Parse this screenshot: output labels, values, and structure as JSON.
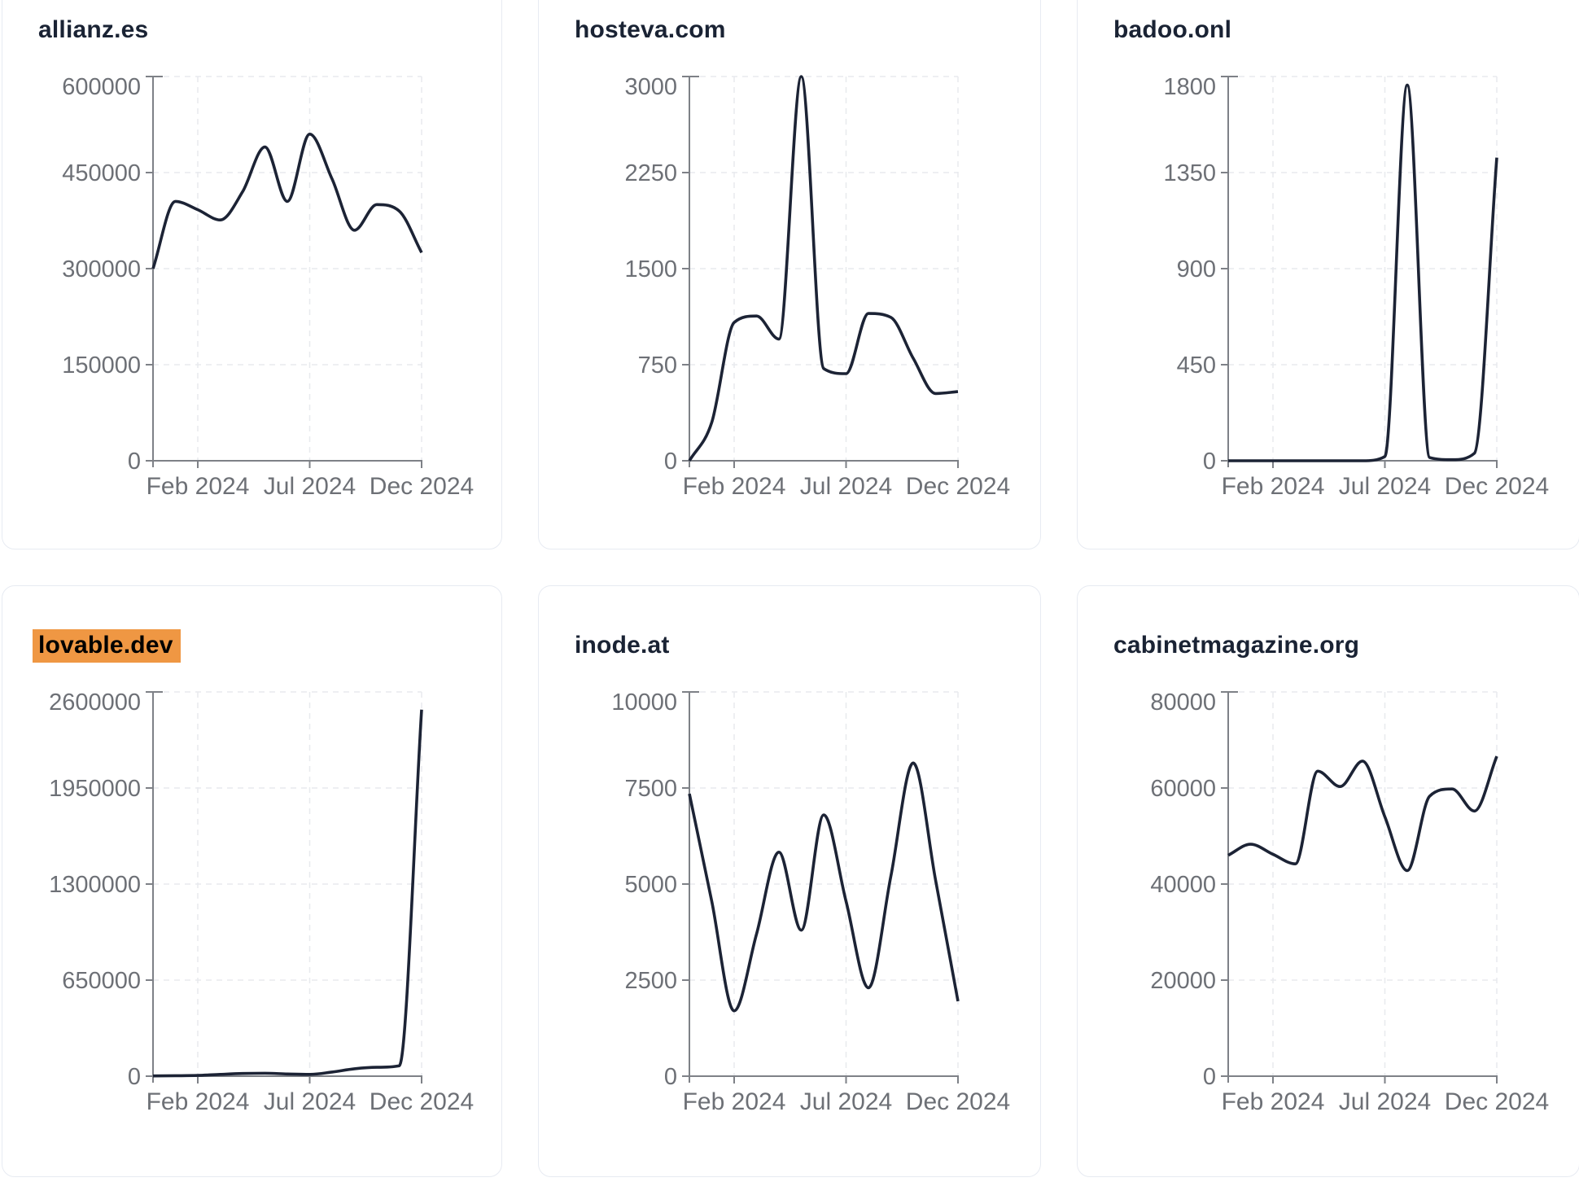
{
  "style": {
    "background": "#ffffff",
    "card_border": "#e7ebf2",
    "title_color": "#1a2334",
    "line_color": "#1c2335",
    "axis_color": "#7e8187",
    "tick_label_color": "#6d7076",
    "gridline_color": "#e8eaee",
    "highlight_color": "#ef9743",
    "highlight_text_color": "#000000"
  },
  "cards": [
    {
      "title": "allianz.es",
      "highlighted": false,
      "chart_data": {
        "type": "line",
        "x": [
          "2023-12",
          "2024-01",
          "2024-02",
          "2024-03",
          "2024-04",
          "2024-05",
          "2024-06",
          "2024-07",
          "2024-08",
          "2024-09",
          "2024-10",
          "2024-11",
          "2024-12"
        ],
        "values": [
          300000,
          405000,
          392000,
          376000,
          420000,
          490000,
          405000,
          510000,
          440000,
          360000,
          400000,
          390000,
          325000
        ],
        "y_ticks": [
          0,
          150000,
          300000,
          450000,
          600000
        ],
        "ylim": [
          0,
          600000
        ],
        "x_tick_labels": [
          "Feb 2024",
          "Jul 2024",
          "Dec 2024"
        ],
        "x_tick_indices": [
          2,
          7,
          12
        ],
        "grid": "dashed",
        "line_color": "#1c2335"
      }
    },
    {
      "title": "hosteva.com",
      "highlighted": false,
      "chart_data": {
        "type": "line",
        "x": [
          "2023-12",
          "2024-01",
          "2024-02",
          "2024-03",
          "2024-04",
          "2024-05",
          "2024-06",
          "2024-07",
          "2024-08",
          "2024-09",
          "2024-10",
          "2024-11",
          "2024-12"
        ],
        "values": [
          0,
          300,
          1080,
          1130,
          950,
          3000,
          720,
          680,
          1150,
          1120,
          800,
          525,
          540
        ],
        "y_ticks": [
          0,
          750,
          1500,
          2250,
          3000
        ],
        "ylim": [
          0,
          3000
        ],
        "x_tick_labels": [
          "Feb 2024",
          "Jul 2024",
          "Dec 2024"
        ],
        "x_tick_indices": [
          2,
          7,
          12
        ],
        "grid": "dashed",
        "line_color": "#1c2335"
      }
    },
    {
      "title": "badoo.onl",
      "highlighted": false,
      "chart_data": {
        "type": "line",
        "x": [
          "2023-12",
          "2024-01",
          "2024-02",
          "2024-03",
          "2024-04",
          "2024-05",
          "2024-06",
          "2024-07",
          "2024-08",
          "2024-09",
          "2024-10",
          "2024-11",
          "2024-12"
        ],
        "values": [
          0,
          0,
          0,
          0,
          0,
          0,
          0,
          20,
          1760,
          15,
          5,
          35,
          1420
        ],
        "y_ticks": [
          0,
          450,
          900,
          1350,
          1800
        ],
        "ylim": [
          0,
          1800
        ],
        "x_tick_labels": [
          "Feb 2024",
          "Jul 2024",
          "Dec 2024"
        ],
        "x_tick_indices": [
          2,
          7,
          12
        ],
        "grid": "dashed",
        "line_color": "#1c2335"
      }
    },
    {
      "title": "lovable.dev",
      "highlighted": true,
      "chart_data": {
        "type": "line",
        "x": [
          "2023-12",
          "2024-01",
          "2024-02",
          "2024-03",
          "2024-04",
          "2024-05",
          "2024-06",
          "2024-07",
          "2024-08",
          "2024-09",
          "2024-10",
          "2024-11",
          "2024-12"
        ],
        "values": [
          2000,
          3000,
          5000,
          12000,
          18000,
          20000,
          15000,
          12000,
          28000,
          50000,
          60000,
          70000,
          2480000
        ],
        "y_ticks": [
          0,
          650000,
          1300000,
          1950000,
          2600000
        ],
        "ylim": [
          0,
          2600000
        ],
        "x_tick_labels": [
          "Feb 2024",
          "Jul 2024",
          "Dec 2024"
        ],
        "x_tick_indices": [
          2,
          7,
          12
        ],
        "grid": "dashed",
        "line_color": "#1c2335"
      }
    },
    {
      "title": "inode.at",
      "highlighted": false,
      "chart_data": {
        "type": "line",
        "x": [
          "2023-12",
          "2024-01",
          "2024-02",
          "2024-03",
          "2024-04",
          "2024-05",
          "2024-06",
          "2024-07",
          "2024-08",
          "2024-09",
          "2024-10",
          "2024-11",
          "2024-12"
        ],
        "values": [
          7350,
          4550,
          1700,
          3700,
          5830,
          3800,
          6800,
          4550,
          2300,
          5200,
          8150,
          5100,
          1950
        ],
        "y_ticks": [
          0,
          2500,
          5000,
          7500,
          10000
        ],
        "ylim": [
          0,
          10000
        ],
        "x_tick_labels": [
          "Feb 2024",
          "Jul 2024",
          "Dec 2024"
        ],
        "x_tick_indices": [
          2,
          7,
          12
        ],
        "grid": "dashed",
        "line_color": "#1c2335"
      }
    },
    {
      "title": "cabinetmagazine.org",
      "highlighted": false,
      "chart_data": {
        "type": "line",
        "x": [
          "2023-12",
          "2024-01",
          "2024-02",
          "2024-03",
          "2024-04",
          "2024-05",
          "2024-06",
          "2024-07",
          "2024-08",
          "2024-09",
          "2024-10",
          "2024-11",
          "2024-12"
        ],
        "values": [
          46000,
          48300,
          46200,
          44200,
          63500,
          60300,
          65600,
          54000,
          42800,
          58300,
          59800,
          55200,
          66600
        ],
        "y_ticks": [
          0,
          20000,
          40000,
          60000,
          80000
        ],
        "ylim": [
          0,
          80000
        ],
        "x_tick_labels": [
          "Feb 2024",
          "Jul 2024",
          "Dec 2024"
        ],
        "x_tick_indices": [
          2,
          7,
          12
        ],
        "grid": "dashed",
        "line_color": "#1c2335"
      }
    }
  ]
}
